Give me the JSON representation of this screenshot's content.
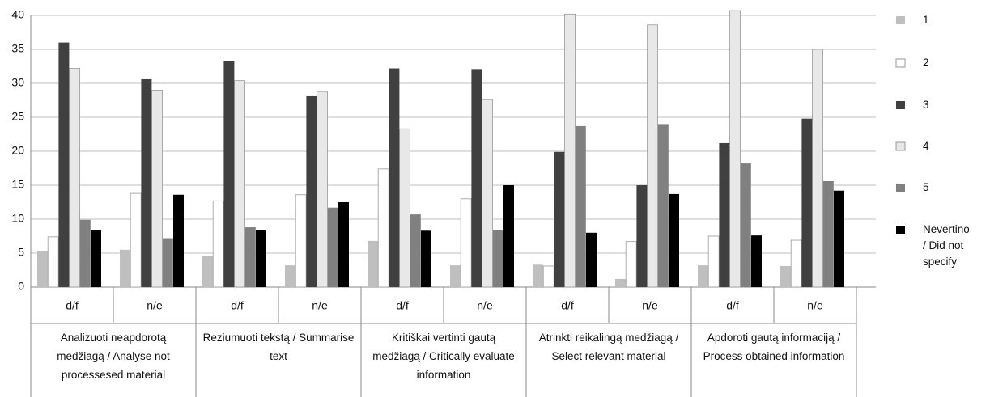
{
  "chart_data": {
    "type": "bar",
    "groups": [
      "Analizuoti neapdorotą medžiagą / Analyse not processesed material",
      "Reziumuoti tekstą / Summarise text",
      "Kritiškai vertinti gautą medžiagą / Critically evaluate information",
      "Atrinkti reikalingą medžiagą / Select relevant material",
      "Apdoroti gautą informaciją / Process obtained information"
    ],
    "categories": [
      "d/f",
      "n/e",
      "d/f",
      "n/e",
      "d/f",
      "n/e",
      "d/f",
      "n/e",
      "d/f",
      "n/e"
    ],
    "series": [
      {
        "name": "1",
        "color": "#bfbfbf",
        "values": [
          5.3,
          5.5,
          4.6,
          3.2,
          6.8,
          3.2,
          3.3,
          1.2,
          3.2,
          3.1
        ]
      },
      {
        "name": "2",
        "color": "#ffffff",
        "values": [
          7.4,
          13.8,
          12.7,
          13.6,
          17.4,
          13.0,
          3.1,
          6.7,
          7.5,
          6.9
        ]
      },
      {
        "name": "3",
        "color": "#404040",
        "values": [
          36.0,
          30.6,
          33.3,
          28.1,
          32.2,
          32.1,
          19.9,
          15.0,
          21.2,
          24.8
        ]
      },
      {
        "name": "4",
        "color": "#e8e8e8",
        "values": [
          32.2,
          29.0,
          30.4,
          28.8,
          23.3,
          27.6,
          40.2,
          38.6,
          40.7,
          35.0
        ]
      },
      {
        "name": "5",
        "color": "#808080",
        "values": [
          9.9,
          7.2,
          8.8,
          11.7,
          10.7,
          8.4,
          23.7,
          24.0,
          18.2,
          15.6
        ]
      },
      {
        "name": "Nevertino / Did not specify",
        "color": "#000000",
        "values": [
          8.4,
          13.6,
          8.4,
          12.5,
          8.3,
          15.0,
          8.0,
          13.7,
          7.6,
          14.2
        ]
      }
    ],
    "ylim": [
      0,
      40
    ],
    "yticks": [
      0,
      5,
      10,
      15,
      20,
      25,
      30,
      35,
      40
    ],
    "grid": true,
    "legend": "right"
  }
}
